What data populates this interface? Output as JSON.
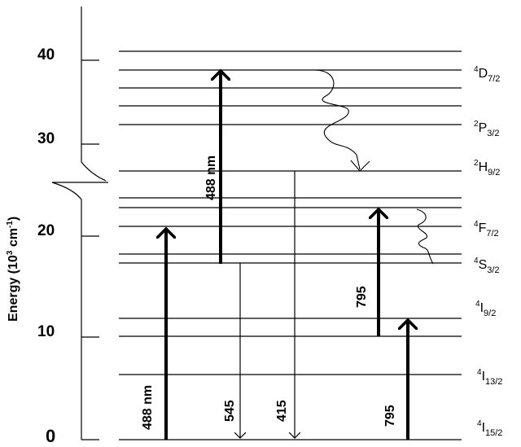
{
  "axis": {
    "title": "Energy (10",
    "title_sup": "3",
    "title_unit": " cm",
    "title_unit_sup": "-1",
    "title_close": ")",
    "ticks": [
      "40",
      "30",
      "20",
      "10",
      "0"
    ]
  },
  "levels": {
    "D72": {
      "sup": "4",
      "main": "D",
      "sub": "7/2"
    },
    "P32": {
      "sup": "2",
      "main": "P",
      "sub": "3/2"
    },
    "H92": {
      "sup": "2",
      "main": "H",
      "sub": "9/2"
    },
    "F72": {
      "sup": "4",
      "main": "F",
      "sub": "7/2"
    },
    "S32": {
      "sup": "4",
      "main": "S",
      "sub": "3/2"
    },
    "I92": {
      "sup": "4",
      "main": "I",
      "sub": "9/2"
    },
    "I132": {
      "sup": "4",
      "main": "I",
      "sub": "13/2"
    },
    "I152": {
      "sup": "4",
      "main": "I",
      "sub": "15/2"
    }
  },
  "transitions": {
    "abs_488_ground": "488 nm",
    "abs_488_excited": "488 nm",
    "emit_545": "545",
    "emit_415": "415",
    "abs_795_second": "795",
    "abs_795_first": "795"
  }
}
